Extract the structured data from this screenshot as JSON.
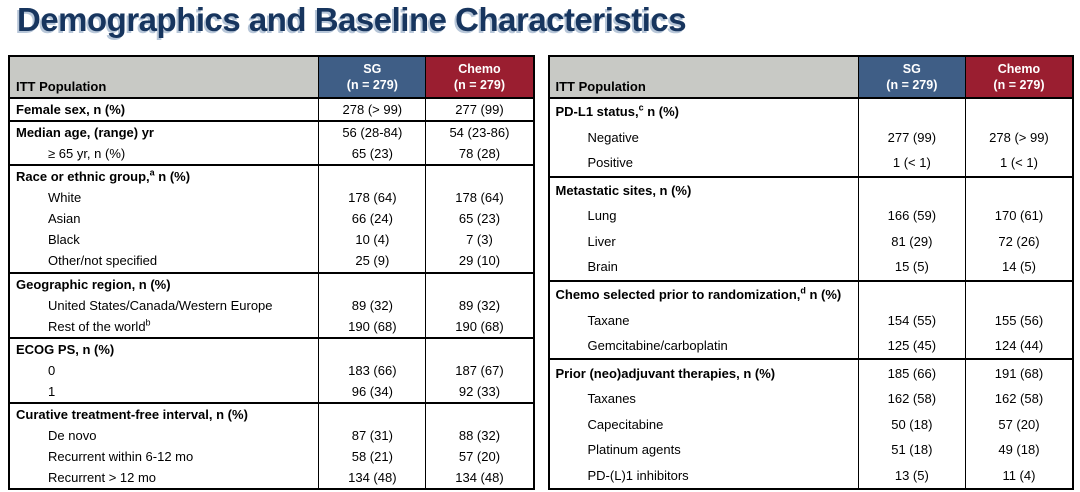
{
  "title": "Demographics and Baseline Characteristics",
  "colors": {
    "title_navy": "#17355e",
    "title_shadow": "#b7c6d8",
    "header_gray": "#c8c9c5",
    "sg_blue": "#3f5e86",
    "chemo_red": "#9a1e30",
    "border_black": "#000000"
  },
  "tables": [
    {
      "header": {
        "population": "ITT Population",
        "sg_arm": "SG",
        "sg_n": "(n = 279)",
        "chemo_arm": "Chemo",
        "chemo_n": "(n = 279)"
      },
      "rows": [
        {
          "label": "Female sex, n (%)",
          "bold": true,
          "sg": "278 (> 99)",
          "chemo": "277 (99)"
        },
        {
          "label": "Median age, (range) yr",
          "bold": true,
          "sep": true,
          "sg": "56 (28-84)",
          "chemo": "54 (23-86)"
        },
        {
          "label": "≥ 65 yr, n (%)",
          "indent": true,
          "sg": "65 (23)",
          "chemo": "78 (28)"
        },
        {
          "label": "Race or ethnic group,",
          "sup": "a",
          "label2": " n (%)",
          "bold": true,
          "sep": true,
          "sg": "",
          "chemo": ""
        },
        {
          "label": "White",
          "indent": true,
          "sg": "178 (64)",
          "chemo": "178 (64)"
        },
        {
          "label": "Asian",
          "indent": true,
          "sg": "66 (24)",
          "chemo": "65 (23)"
        },
        {
          "label": "Black",
          "indent": true,
          "sg": "10 (4)",
          "chemo": "7 (3)"
        },
        {
          "label": "Other/not specified",
          "indent": true,
          "sg": "25 (9)",
          "chemo": "29 (10)"
        },
        {
          "label": "Geographic region, n (%)",
          "bold": true,
          "sep": true,
          "sg": "",
          "chemo": ""
        },
        {
          "label": "United States/Canada/Western Europe",
          "indent": true,
          "sg": "89 (32)",
          "chemo": "89 (32)"
        },
        {
          "label": "Rest of the world",
          "sup": "b",
          "label2": "",
          "indent": true,
          "sg": "190 (68)",
          "chemo": "190 (68)"
        },
        {
          "label": "ECOG PS, n (%)",
          "bold": true,
          "sep": true,
          "sg": "",
          "chemo": ""
        },
        {
          "label": "0",
          "indent": true,
          "sg": "183 (66)",
          "chemo": "187 (67)"
        },
        {
          "label": "1",
          "indent": true,
          "sg": "96 (34)",
          "chemo": "92 (33)"
        },
        {
          "label": "Curative treatment-free interval, n (%)",
          "bold": true,
          "sep": true,
          "sg": "",
          "chemo": ""
        },
        {
          "label": "De novo",
          "indent": true,
          "sg": "87 (31)",
          "chemo": "88 (32)"
        },
        {
          "label": "Recurrent within 6-12 mo",
          "indent": true,
          "sg": "58 (21)",
          "chemo": "57 (20)"
        },
        {
          "label": "Recurrent > 12 mo",
          "indent": true,
          "sg": "134 (48)",
          "chemo": "134 (48)"
        }
      ]
    },
    {
      "header": {
        "population": "ITT Population",
        "sg_arm": "SG",
        "sg_n": "(n = 279)",
        "chemo_arm": "Chemo",
        "chemo_n": "(n = 279)"
      },
      "rows": [
        {
          "label": "PD-L1 status,",
          "sup": "c",
          "label2": " n (%)",
          "bold": true,
          "sg": "",
          "chemo": ""
        },
        {
          "label": "Negative",
          "indent": true,
          "sg": "277 (99)",
          "chemo": "278 (> 99)"
        },
        {
          "label": "Positive",
          "indent": true,
          "sg": "1 (< 1)",
          "chemo": "1 (< 1)"
        },
        {
          "label": "Metastatic sites, n (%)",
          "bold": true,
          "sep": true,
          "sg": "",
          "chemo": ""
        },
        {
          "label": "Lung",
          "indent": true,
          "sg": "166 (59)",
          "chemo": "170 (61)"
        },
        {
          "label": "Liver",
          "indent": true,
          "sg": "81 (29)",
          "chemo": "72 (26)"
        },
        {
          "label": "Brain",
          "indent": true,
          "sg": "15 (5)",
          "chemo": "14 (5)"
        },
        {
          "label": "Chemo selected prior to randomization,",
          "sup": "d",
          "label2": " n (%)",
          "bold": true,
          "sep": true,
          "sg": "",
          "chemo": ""
        },
        {
          "label": "Taxane",
          "indent": true,
          "sg": "154 (55)",
          "chemo": "155 (56)"
        },
        {
          "label": "Gemcitabine/carboplatin",
          "indent": true,
          "sg": "125 (45)",
          "chemo": "124 (44)"
        },
        {
          "label": "Prior (neo)adjuvant therapies, n (%)",
          "bold": true,
          "sep": true,
          "sg": "185 (66)",
          "chemo": "191 (68)"
        },
        {
          "label": "Taxanes",
          "indent": true,
          "sg": "162 (58)",
          "chemo": "162 (58)"
        },
        {
          "label": "Capecitabine",
          "indent": true,
          "sg": "50 (18)",
          "chemo": "57 (20)"
        },
        {
          "label": "Platinum agents",
          "indent": true,
          "sg": "51 (18)",
          "chemo": "49 (18)"
        },
        {
          "label": "PD-(L)1 inhibitors",
          "indent": true,
          "sg": "13 (5)",
          "chemo": "11 (4)"
        }
      ]
    }
  ]
}
